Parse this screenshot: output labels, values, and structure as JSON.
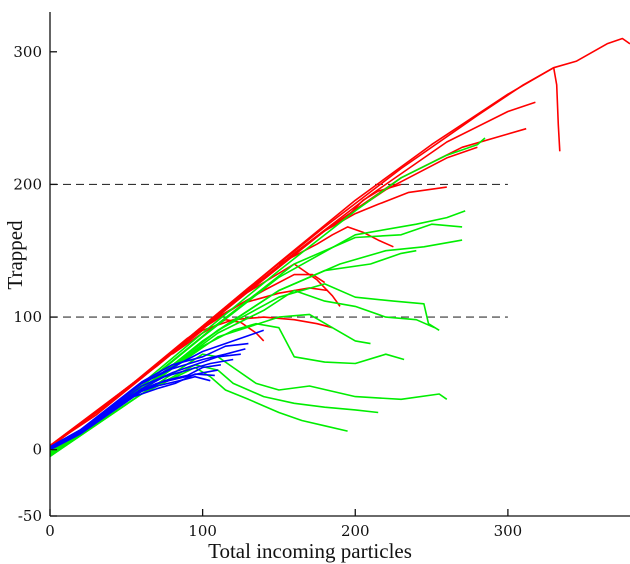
{
  "chart_data": {
    "type": "line",
    "title": "",
    "xlabel": "Total incoming particles",
    "ylabel": "Trapped",
    "xlim": [
      0,
      380
    ],
    "ylim": [
      -50,
      330
    ],
    "xticks": [
      0,
      100,
      200,
      300
    ],
    "yticks": [
      -50,
      0,
      100,
      200,
      300
    ],
    "grid": false,
    "reference_lines": [
      {
        "y": 100,
        "x_range": [
          0,
          300
        ],
        "style": "dashed"
      },
      {
        "y": 200,
        "x_range": [
          0,
          300
        ],
        "style": "dashed"
      }
    ],
    "colors": {
      "red": "#ff0000",
      "green": "#00ee00",
      "blue": "#0000ff",
      "reference": "#333333"
    },
    "series": [
      {
        "color": "red",
        "points": [
          [
            0,
            3
          ],
          [
            30,
            26
          ],
          [
            60,
            54
          ],
          [
            100,
            93
          ],
          [
            150,
            141
          ],
          [
            200,
            188
          ],
          [
            250,
            230
          ],
          [
            300,
            268
          ],
          [
            330,
            288
          ],
          [
            345,
            293
          ],
          [
            365,
            306
          ],
          [
            375,
            310
          ],
          [
            380,
            306
          ]
        ]
      },
      {
        "color": "red",
        "points": [
          [
            0,
            2
          ],
          [
            40,
            36
          ],
          [
            80,
            74
          ],
          [
            130,
            122
          ],
          [
            180,
            168
          ],
          [
            230,
            212
          ],
          [
            280,
            252
          ],
          [
            310,
            275
          ],
          [
            330,
            288
          ]
        ]
      },
      {
        "color": "red",
        "points": [
          [
            0,
            2
          ],
          [
            50,
            45
          ],
          [
            100,
            92
          ],
          [
            160,
            148
          ],
          [
            210,
            192
          ],
          [
            260,
            232
          ],
          [
            300,
            255
          ],
          [
            318,
            262
          ]
        ]
      },
      {
        "color": "red",
        "points": [
          [
            0,
            3
          ],
          [
            60,
            55
          ],
          [
            120,
            112
          ],
          [
            180,
            165
          ],
          [
            230,
            205
          ],
          [
            270,
            228
          ],
          [
            300,
            238
          ],
          [
            312,
            242
          ]
        ]
      },
      {
        "color": "red",
        "points": [
          [
            0,
            2
          ],
          [
            60,
            54
          ],
          [
            120,
            110
          ],
          [
            180,
            165
          ],
          [
            220,
            196
          ],
          [
            260,
            220
          ],
          [
            280,
            228
          ]
        ]
      },
      {
        "color": "red",
        "points": [
          [
            0,
            3
          ],
          [
            70,
            63
          ],
          [
            130,
            120
          ],
          [
            180,
            165
          ],
          [
            200,
            178
          ],
          [
            215,
            185
          ],
          [
            235,
            194
          ],
          [
            260,
            198
          ]
        ]
      },
      {
        "color": "red",
        "points": [
          [
            0,
            2
          ],
          [
            60,
            55
          ],
          [
            120,
            110
          ],
          [
            160,
            148
          ],
          [
            180,
            165
          ],
          [
            195,
            176
          ],
          [
            205,
            188
          ],
          [
            215,
            195
          ],
          [
            230,
            200
          ]
        ]
      },
      {
        "color": "red",
        "points": [
          [
            0,
            2
          ],
          [
            60,
            55
          ],
          [
            120,
            112
          ],
          [
            160,
            140
          ],
          [
            175,
            128
          ],
          [
            185,
            116
          ],
          [
            190,
            108
          ]
        ]
      },
      {
        "color": "red",
        "points": [
          [
            0,
            2
          ],
          [
            60,
            55
          ],
          [
            110,
            100
          ],
          [
            140,
            120
          ],
          [
            160,
            132
          ],
          [
            172,
            132
          ],
          [
            180,
            126
          ]
        ]
      },
      {
        "color": "red",
        "points": [
          [
            0,
            2
          ],
          [
            60,
            55
          ],
          [
            100,
            90
          ],
          [
            120,
            98
          ],
          [
            140,
            100
          ],
          [
            160,
            98
          ],
          [
            175,
            95
          ],
          [
            185,
            92
          ]
        ]
      },
      {
        "color": "red",
        "points": [
          [
            150,
            140
          ],
          [
            160,
            146
          ],
          [
            175,
            155
          ],
          [
            185,
            162
          ],
          [
            195,
            168
          ],
          [
            205,
            164
          ],
          [
            215,
            158
          ],
          [
            225,
            153
          ]
        ]
      },
      {
        "color": "red",
        "points": [
          [
            330,
            288
          ],
          [
            332,
            275
          ],
          [
            333,
            245
          ],
          [
            334,
            225
          ]
        ]
      },
      {
        "color": "red",
        "points": [
          [
            80,
            72
          ],
          [
            100,
            88
          ],
          [
            115,
            98
          ],
          [
            125,
            96
          ],
          [
            135,
            88
          ],
          [
            140,
            82
          ]
        ]
      },
      {
        "color": "red",
        "points": [
          [
            0,
            2
          ],
          [
            50,
            46
          ],
          [
            90,
            84
          ],
          [
            125,
            110
          ],
          [
            150,
            118
          ],
          [
            170,
            122
          ],
          [
            182,
            120
          ]
        ]
      },
      {
        "color": "green",
        "points": [
          [
            0,
            -2
          ],
          [
            50,
            40
          ],
          [
            100,
            88
          ],
          [
            150,
            135
          ],
          [
            200,
            180
          ],
          [
            230,
            205
          ],
          [
            260,
            222
          ],
          [
            280,
            230
          ],
          [
            285,
            235
          ]
        ]
      },
      {
        "color": "green",
        "points": [
          [
            0,
            -4
          ],
          [
            50,
            38
          ],
          [
            100,
            85
          ],
          [
            150,
            130
          ],
          [
            200,
            162
          ],
          [
            240,
            170
          ],
          [
            260,
            175
          ],
          [
            272,
            180
          ]
        ]
      },
      {
        "color": "green",
        "points": [
          [
            0,
            -3
          ],
          [
            60,
            48
          ],
          [
            110,
            95
          ],
          [
            160,
            140
          ],
          [
            200,
            160
          ],
          [
            230,
            162
          ],
          [
            250,
            170
          ],
          [
            270,
            168
          ]
        ]
      },
      {
        "color": "green",
        "points": [
          [
            0,
            -5
          ],
          [
            60,
            45
          ],
          [
            100,
            82
          ],
          [
            150,
            120
          ],
          [
            190,
            140
          ],
          [
            220,
            150
          ],
          [
            245,
            153
          ],
          [
            270,
            158
          ]
        ]
      },
      {
        "color": "green",
        "points": [
          [
            0,
            -3
          ],
          [
            60,
            46
          ],
          [
            110,
            90
          ],
          [
            150,
            120
          ],
          [
            180,
            135
          ],
          [
            210,
            140
          ],
          [
            230,
            148
          ],
          [
            240,
            150
          ]
        ]
      },
      {
        "color": "green",
        "points": [
          [
            0,
            -4
          ],
          [
            60,
            45
          ],
          [
            110,
            90
          ],
          [
            150,
            115
          ],
          [
            180,
            125
          ],
          [
            200,
            115
          ],
          [
            225,
            112
          ],
          [
            245,
            110
          ],
          [
            248,
            95
          ],
          [
            255,
            90
          ]
        ]
      },
      {
        "color": "green",
        "points": [
          [
            0,
            -4
          ],
          [
            60,
            45
          ],
          [
            110,
            88
          ],
          [
            140,
            105
          ],
          [
            160,
            120
          ],
          [
            180,
            112
          ],
          [
            200,
            108
          ],
          [
            220,
            100
          ],
          [
            240,
            98
          ],
          [
            252,
            92
          ]
        ]
      },
      {
        "color": "green",
        "points": [
          [
            0,
            -3
          ],
          [
            60,
            45
          ],
          [
            110,
            85
          ],
          [
            150,
            100
          ],
          [
            170,
            102
          ],
          [
            185,
            92
          ],
          [
            200,
            82
          ],
          [
            210,
            80
          ]
        ]
      },
      {
        "color": "green",
        "points": [
          [
            0,
            -4
          ],
          [
            60,
            44
          ],
          [
            100,
            78
          ],
          [
            120,
            90
          ],
          [
            135,
            95
          ],
          [
            150,
            92
          ],
          [
            160,
            70
          ],
          [
            180,
            66
          ],
          [
            200,
            65
          ],
          [
            220,
            72
          ],
          [
            232,
            68
          ]
        ]
      },
      {
        "color": "green",
        "points": [
          [
            0,
            -5
          ],
          [
            60,
            42
          ],
          [
            100,
            72
          ],
          [
            110,
            70
          ],
          [
            120,
            62
          ],
          [
            135,
            50
          ],
          [
            150,
            45
          ],
          [
            170,
            48
          ],
          [
            200,
            40
          ],
          [
            230,
            38
          ],
          [
            255,
            42
          ],
          [
            260,
            38
          ]
        ]
      },
      {
        "color": "green",
        "points": [
          [
            0,
            -5
          ],
          [
            60,
            42
          ],
          [
            95,
            64
          ],
          [
            110,
            60
          ],
          [
            120,
            50
          ],
          [
            140,
            40
          ],
          [
            160,
            35
          ],
          [
            180,
            32
          ],
          [
            200,
            30
          ],
          [
            215,
            28
          ]
        ]
      },
      {
        "color": "green",
        "points": [
          [
            0,
            -4
          ],
          [
            60,
            42
          ],
          [
            95,
            62
          ],
          [
            105,
            55
          ],
          [
            115,
            45
          ],
          [
            130,
            38
          ],
          [
            150,
            28
          ],
          [
            165,
            22
          ],
          [
            180,
            18
          ],
          [
            195,
            14
          ]
        ]
      },
      {
        "color": "blue",
        "points": [
          [
            0,
            0
          ],
          [
            20,
            14
          ],
          [
            40,
            32
          ],
          [
            60,
            50
          ],
          [
            80,
            62
          ],
          [
            100,
            74
          ],
          [
            120,
            82
          ],
          [
            130,
            86
          ],
          [
            140,
            90
          ]
        ]
      },
      {
        "color": "blue",
        "points": [
          [
            0,
            2
          ],
          [
            20,
            15
          ],
          [
            40,
            33
          ],
          [
            60,
            51
          ],
          [
            80,
            64
          ],
          [
            100,
            70
          ],
          [
            115,
            78
          ],
          [
            130,
            80
          ]
        ]
      },
      {
        "color": "blue",
        "points": [
          [
            0,
            1
          ],
          [
            20,
            14
          ],
          [
            40,
            32
          ],
          [
            60,
            50
          ],
          [
            80,
            61
          ],
          [
            100,
            68
          ],
          [
            115,
            72
          ],
          [
            128,
            76
          ]
        ]
      },
      {
        "color": "blue",
        "points": [
          [
            0,
            2
          ],
          [
            20,
            15
          ],
          [
            40,
            31
          ],
          [
            60,
            48
          ],
          [
            80,
            58
          ],
          [
            95,
            64
          ],
          [
            110,
            70
          ],
          [
            125,
            72
          ]
        ]
      },
      {
        "color": "blue",
        "points": [
          [
            0,
            1
          ],
          [
            20,
            13
          ],
          [
            40,
            30
          ],
          [
            60,
            46
          ],
          [
            75,
            55
          ],
          [
            90,
            60
          ],
          [
            105,
            65
          ],
          [
            120,
            68
          ]
        ]
      },
      {
        "color": "blue",
        "points": [
          [
            0,
            0
          ],
          [
            20,
            12
          ],
          [
            40,
            29
          ],
          [
            60,
            44
          ],
          [
            75,
            52
          ],
          [
            90,
            56
          ],
          [
            100,
            62
          ],
          [
            112,
            64
          ]
        ]
      },
      {
        "color": "blue",
        "points": [
          [
            0,
            1
          ],
          [
            20,
            13
          ],
          [
            40,
            30
          ],
          [
            60,
            45
          ],
          [
            70,
            50
          ],
          [
            85,
            54
          ],
          [
            100,
            58
          ],
          [
            110,
            60
          ]
        ]
      },
      {
        "color": "blue",
        "points": [
          [
            0,
            2
          ],
          [
            20,
            14
          ],
          [
            40,
            31
          ],
          [
            55,
            42
          ],
          [
            70,
            48
          ],
          [
            85,
            52
          ],
          [
            95,
            55
          ],
          [
            105,
            52
          ]
        ]
      },
      {
        "color": "blue",
        "points": [
          [
            0,
            0
          ],
          [
            20,
            12
          ],
          [
            40,
            28
          ],
          [
            55,
            40
          ],
          [
            70,
            46
          ],
          [
            82,
            50
          ],
          [
            95,
            57
          ],
          [
            108,
            56
          ]
        ]
      }
    ]
  }
}
